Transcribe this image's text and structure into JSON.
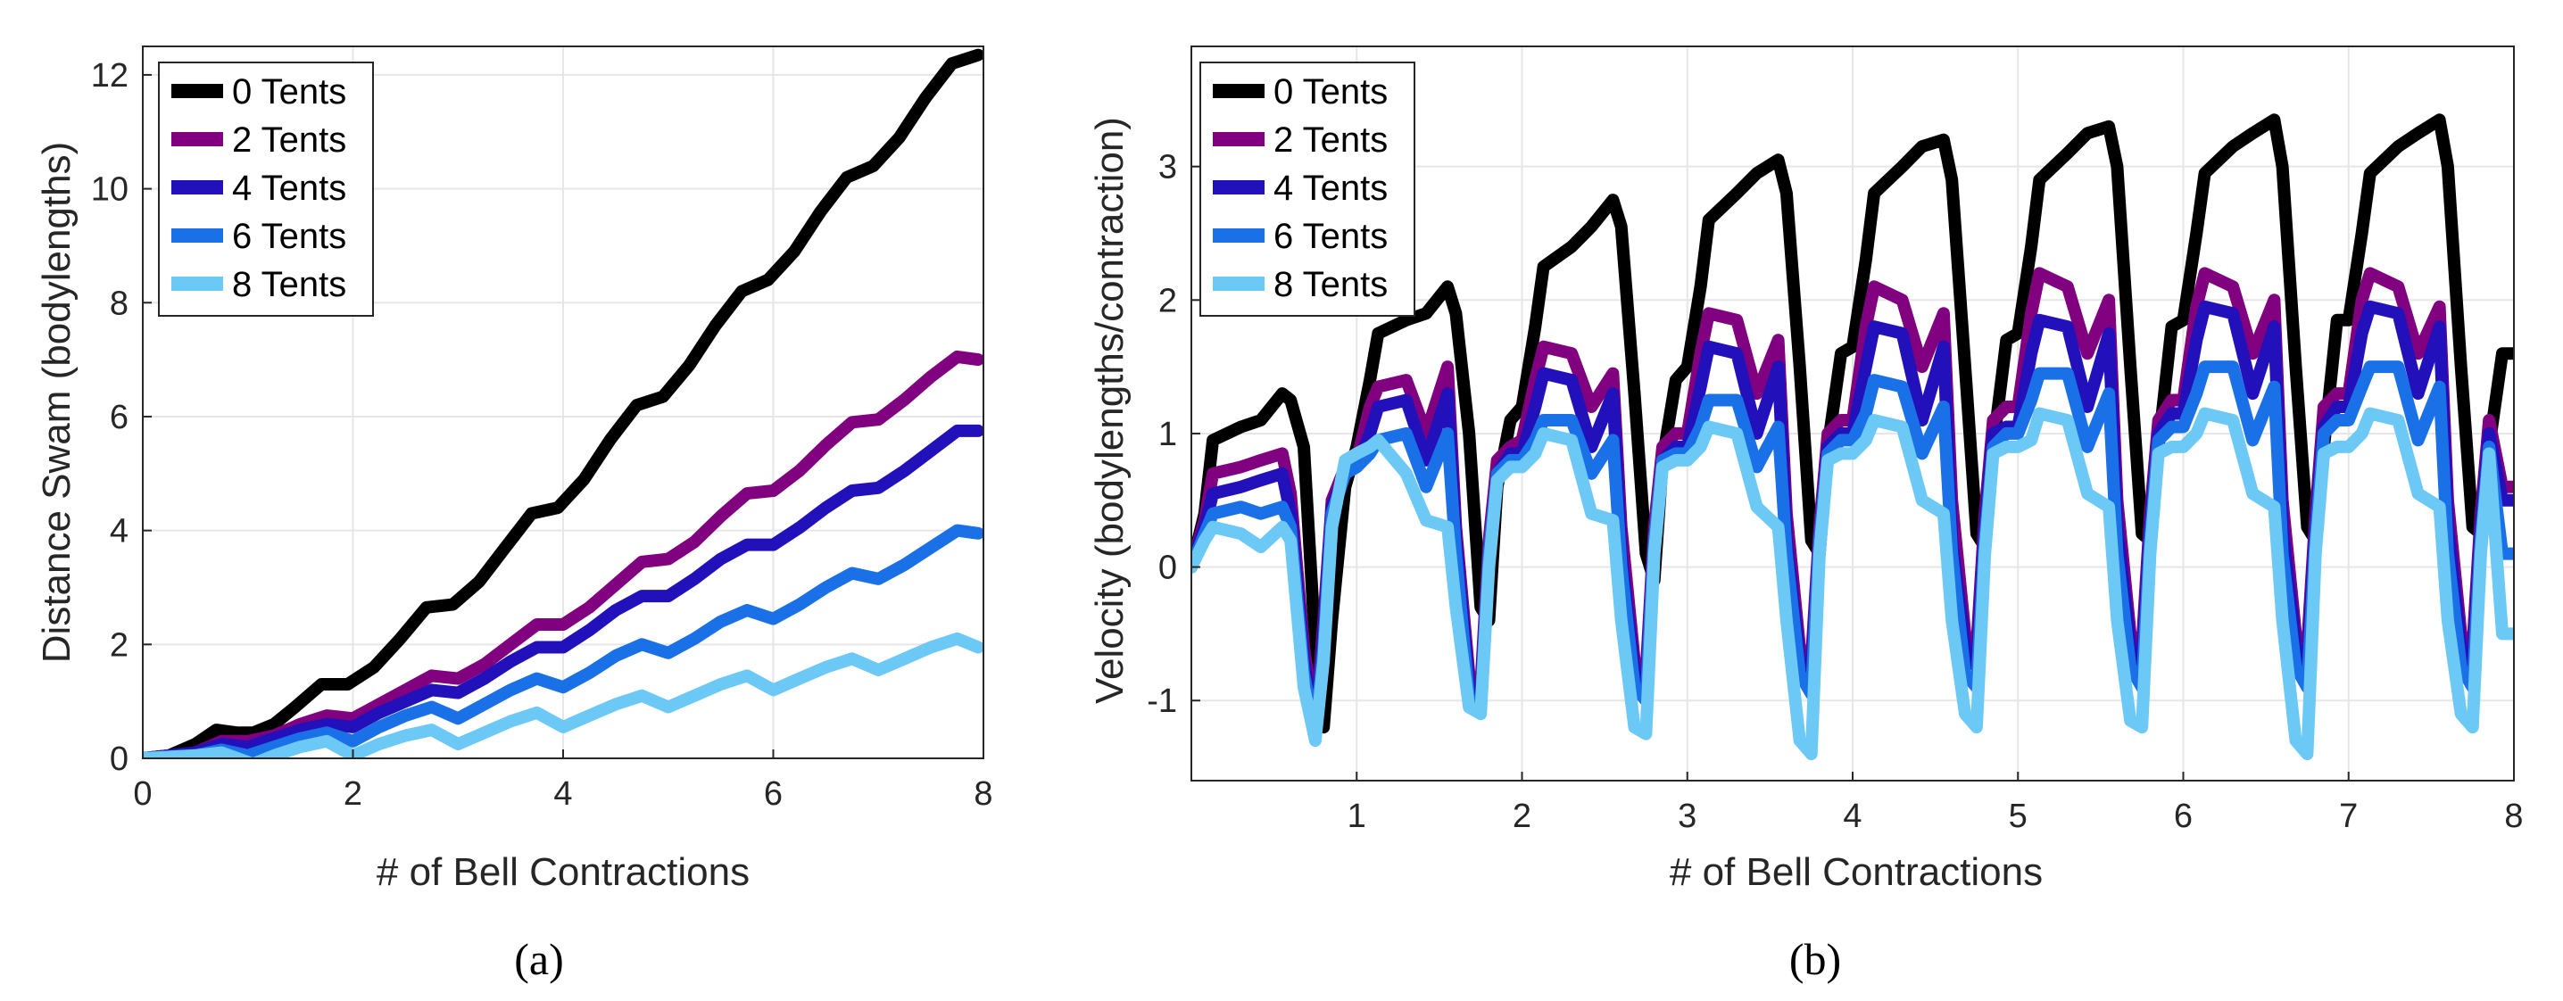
{
  "chart_data": [
    {
      "type": "line",
      "caption": "(a)",
      "xlabel": "# of Bell Contractions",
      "ylabel": "Distance Swam (bodylengths)",
      "xlim": [
        0,
        8
      ],
      "ylim": [
        0,
        12.5
      ],
      "xticks": [
        0,
        2,
        4,
        6,
        8
      ],
      "yticks": [
        0,
        2,
        4,
        6,
        8,
        10,
        12
      ],
      "grid": true,
      "legend": "top-left",
      "series": [
        {
          "name": "0 Tents",
          "color": "#000000",
          "x": [
            0,
            0.25,
            0.5,
            0.7,
            0.9,
            1.05,
            1.25,
            1.45,
            1.7,
            1.95,
            2.2,
            2.45,
            2.7,
            2.95,
            3.2,
            3.45,
            3.7,
            3.95,
            4.2,
            4.45,
            4.7,
            4.95,
            5.2,
            5.45,
            5.7,
            5.95,
            6.2,
            6.45,
            6.7,
            6.95,
            7.2,
            7.45,
            7.7,
            7.95
          ],
          "y": [
            0,
            0.05,
            0.25,
            0.5,
            0.45,
            0.45,
            0.6,
            0.9,
            1.3,
            1.3,
            1.6,
            2.1,
            2.65,
            2.7,
            3.1,
            3.7,
            4.3,
            4.4,
            4.9,
            5.6,
            6.2,
            6.35,
            6.9,
            7.6,
            8.2,
            8.4,
            8.9,
            9.6,
            10.2,
            10.4,
            10.9,
            11.6,
            12.2,
            12.35
          ]
        },
        {
          "name": "2 Tents",
          "color": "#800080",
          "x": [
            0,
            0.5,
            0.75,
            1,
            1.25,
            1.5,
            1.75,
            2,
            2.25,
            2.5,
            2.75,
            3,
            3.25,
            3.5,
            3.75,
            4,
            4.25,
            4.5,
            4.75,
            5,
            5.25,
            5.5,
            5.75,
            6,
            6.25,
            6.5,
            6.75,
            7,
            7.25,
            7.5,
            7.75,
            7.95
          ],
          "y": [
            0,
            0.1,
            0.3,
            0.3,
            0.4,
            0.6,
            0.75,
            0.7,
            0.95,
            1.2,
            1.45,
            1.4,
            1.65,
            2,
            2.35,
            2.35,
            2.65,
            3.05,
            3.45,
            3.5,
            3.8,
            4.25,
            4.65,
            4.7,
            5.05,
            5.5,
            5.9,
            5.95,
            6.3,
            6.7,
            7.05,
            7.0
          ]
        },
        {
          "name": "4 Tents",
          "color": "#2211BB",
          "x": [
            0,
            0.5,
            0.75,
            1,
            1.25,
            1.5,
            1.75,
            2,
            2.25,
            2.5,
            2.75,
            3,
            3.25,
            3.5,
            3.75,
            4,
            4.25,
            4.5,
            4.75,
            5,
            5.25,
            5.5,
            5.75,
            6,
            6.25,
            6.5,
            6.75,
            7,
            7.25,
            7.5,
            7.75,
            7.95
          ],
          "y": [
            0,
            0.1,
            0.25,
            0.2,
            0.35,
            0.5,
            0.6,
            0.55,
            0.8,
            1.0,
            1.2,
            1.15,
            1.4,
            1.7,
            1.95,
            1.95,
            2.25,
            2.6,
            2.85,
            2.85,
            3.15,
            3.5,
            3.75,
            3.75,
            4.05,
            4.4,
            4.7,
            4.75,
            5.05,
            5.4,
            5.75,
            5.75
          ]
        },
        {
          "name": "6 Tents",
          "color": "#1A70E6",
          "x": [
            0,
            0.5,
            0.75,
            1,
            1.25,
            1.5,
            1.75,
            2,
            2.25,
            2.5,
            2.75,
            3,
            3.25,
            3.5,
            3.75,
            4,
            4.25,
            4.5,
            4.75,
            5,
            5.25,
            5.5,
            5.75,
            6,
            6.25,
            6.5,
            6.75,
            7,
            7.25,
            7.5,
            7.75,
            7.95
          ],
          "y": [
            0,
            0.05,
            0.15,
            0.05,
            0.2,
            0.35,
            0.45,
            0.3,
            0.55,
            0.75,
            0.9,
            0.7,
            0.95,
            1.2,
            1.4,
            1.25,
            1.5,
            1.8,
            2.0,
            1.85,
            2.1,
            2.4,
            2.6,
            2.45,
            2.7,
            3.0,
            3.25,
            3.15,
            3.4,
            3.7,
            4.0,
            3.95
          ]
        },
        {
          "name": "8 Tents",
          "color": "#6CC8F5",
          "x": [
            0,
            0.5,
            0.75,
            0.9,
            1.05,
            1.25,
            1.5,
            1.75,
            2,
            2.25,
            2.5,
            2.75,
            3,
            3.25,
            3.5,
            3.75,
            4,
            4.25,
            4.5,
            4.75,
            5,
            5.25,
            5.5,
            5.75,
            6,
            6.25,
            6.5,
            6.75,
            7,
            7.25,
            7.5,
            7.75,
            7.95
          ],
          "y": [
            0,
            0.05,
            0.1,
            0.0,
            -0.1,
            0.05,
            0.2,
            0.3,
            0.05,
            0.25,
            0.4,
            0.5,
            0.25,
            0.45,
            0.65,
            0.8,
            0.55,
            0.75,
            0.95,
            1.1,
            0.9,
            1.1,
            1.3,
            1.45,
            1.2,
            1.4,
            1.6,
            1.75,
            1.55,
            1.75,
            1.95,
            2.1,
            1.95
          ]
        }
      ]
    },
    {
      "type": "line",
      "caption": "(b)",
      "xlabel": "# of Bell Contractions",
      "ylabel": "Velocity (bodylengths/contraction)",
      "xlim": [
        0,
        8
      ],
      "ylim": [
        -1.6,
        3.9
      ],
      "xticks": [
        1,
        2,
        3,
        4,
        5,
        6,
        7,
        8
      ],
      "yticks": [
        -1,
        0,
        1,
        2,
        3
      ],
      "grid": true,
      "legend": "top-left",
      "cycle_x": [
        0,
        0.08,
        0.13,
        0.3,
        0.42,
        0.55,
        0.6,
        0.68,
        0.75,
        0.8,
        0.85,
        0.93,
        1.0
      ],
      "series": [
        {
          "name": "0 Tents",
          "color": "#000000",
          "cycle_y": [
            [
              0,
              0.4,
              0.95,
              1.05,
              1.1,
              1.3,
              1.25,
              0.9,
              -0.6,
              -1.2,
              -0.4,
              0.6,
              0.9
            ],
            [
              0.9,
              1.4,
              1.75,
              1.85,
              1.9,
              2.1,
              1.9,
              1.0,
              -0.3,
              -0.4,
              0.6,
              1.1,
              1.2
            ],
            [
              1.2,
              1.8,
              2.25,
              2.4,
              2.55,
              2.75,
              2.55,
              1.3,
              0.1,
              -0.1,
              0.8,
              1.4,
              1.5
            ],
            [
              1.5,
              2.1,
              2.6,
              2.8,
              2.95,
              3.05,
              2.8,
              1.5,
              0.2,
              0.1,
              0.9,
              1.6,
              1.65
            ],
            [
              1.65,
              2.3,
              2.8,
              3.0,
              3.15,
              3.2,
              2.9,
              1.5,
              0.25,
              0.15,
              0.9,
              1.7,
              1.75
            ],
            [
              1.75,
              2.4,
              2.9,
              3.1,
              3.25,
              3.3,
              3.0,
              1.5,
              0.25,
              0.2,
              0.9,
              1.8,
              1.85
            ],
            [
              1.85,
              2.5,
              2.95,
              3.15,
              3.25,
              3.35,
              3.0,
              1.5,
              0.3,
              0.2,
              0.9,
              1.85,
              1.85
            ],
            [
              1.85,
              2.5,
              2.95,
              3.15,
              3.25,
              3.35,
              3.0,
              1.5,
              0.3,
              0.25,
              0.9,
              1.6,
              1.6
            ]
          ]
        },
        {
          "name": "2 Tents",
          "color": "#800080",
          "cycle_y": [
            [
              0,
              0.35,
              0.7,
              0.75,
              0.8,
              0.85,
              0.55,
              -0.6,
              -1.2,
              -0.4,
              0.5,
              0.75,
              0.8
            ],
            [
              0.8,
              1.2,
              1.35,
              1.4,
              1.0,
              1.5,
              0.3,
              -0.8,
              -0.9,
              0.2,
              0.8,
              0.9,
              0.95
            ],
            [
              0.95,
              1.4,
              1.65,
              1.6,
              1.2,
              1.45,
              0.3,
              -0.7,
              -0.8,
              0.3,
              0.9,
              1.0,
              1.0
            ],
            [
              1.0,
              1.6,
              1.9,
              1.85,
              1.3,
              1.7,
              0.4,
              -0.6,
              -0.7,
              0.3,
              1.0,
              1.1,
              1.1
            ],
            [
              1.1,
              1.8,
              2.1,
              2.0,
              1.5,
              1.9,
              0.5,
              -0.5,
              -0.6,
              0.4,
              1.1,
              1.2,
              1.2
            ],
            [
              1.2,
              1.9,
              2.2,
              2.1,
              1.6,
              2.0,
              0.5,
              -0.5,
              -0.6,
              0.4,
              1.1,
              1.25,
              1.25
            ],
            [
              1.25,
              1.95,
              2.2,
              2.1,
              1.6,
              2.0,
              0.5,
              -0.5,
              -0.6,
              0.4,
              1.2,
              1.3,
              1.3
            ],
            [
              1.3,
              2.0,
              2.2,
              2.1,
              1.6,
              1.95,
              0.5,
              -0.5,
              -0.6,
              0.4,
              1.1,
              0.6,
              0.6
            ]
          ]
        },
        {
          "name": "4 Tents",
          "color": "#2211BB",
          "cycle_y": [
            [
              0,
              0.3,
              0.55,
              0.6,
              0.65,
              0.7,
              0.4,
              -0.7,
              -1.25,
              -0.5,
              0.45,
              0.7,
              0.75
            ],
            [
              0.75,
              1.0,
              1.2,
              1.25,
              0.8,
              1.3,
              0.2,
              -0.9,
              -1.0,
              0.1,
              0.7,
              0.85,
              0.85
            ],
            [
              0.85,
              1.2,
              1.45,
              1.4,
              0.9,
              1.3,
              0.1,
              -0.8,
              -0.9,
              0.2,
              0.8,
              0.9,
              0.9
            ],
            [
              0.9,
              1.35,
              1.65,
              1.6,
              1.0,
              1.5,
              0.2,
              -0.7,
              -0.8,
              0.2,
              0.9,
              1.0,
              1.0
            ],
            [
              1.0,
              1.5,
              1.8,
              1.75,
              1.1,
              1.65,
              0.2,
              -0.6,
              -0.75,
              0.3,
              1.0,
              1.05,
              1.05
            ],
            [
              1.05,
              1.6,
              1.85,
              1.8,
              1.2,
              1.75,
              0.3,
              -0.6,
              -0.75,
              0.3,
              1.0,
              1.15,
              1.15
            ],
            [
              1.15,
              1.7,
              1.95,
              1.9,
              1.3,
              1.8,
              0.3,
              -0.6,
              -0.75,
              0.3,
              1.05,
              1.2,
              1.2
            ],
            [
              1.2,
              1.75,
              1.95,
              1.9,
              1.3,
              1.8,
              0.3,
              -0.6,
              -0.75,
              0.3,
              1.0,
              0.5,
              0.5
            ]
          ]
        },
        {
          "name": "6 Tents",
          "color": "#1A70E6",
          "cycle_y": [
            [
              0,
              0.25,
              0.4,
              0.45,
              0.4,
              0.45,
              0.3,
              -0.8,
              -1.25,
              -0.6,
              0.4,
              0.7,
              0.75
            ],
            [
              0.75,
              0.85,
              0.95,
              1.0,
              0.6,
              1.0,
              0.1,
              -1.0,
              -1.05,
              0.1,
              0.7,
              0.8,
              0.8
            ],
            [
              0.8,
              0.95,
              1.1,
              1.1,
              0.7,
              0.95,
              0.0,
              -0.9,
              -1.0,
              0.2,
              0.8,
              0.85,
              0.85
            ],
            [
              0.85,
              1.05,
              1.25,
              1.25,
              0.75,
              1.05,
              0.1,
              -0.8,
              -0.95,
              0.2,
              0.85,
              0.95,
              0.95
            ],
            [
              0.95,
              1.15,
              1.4,
              1.35,
              0.85,
              1.2,
              0.1,
              -0.8,
              -0.9,
              0.2,
              0.9,
              1.0,
              1.0
            ],
            [
              1.0,
              1.25,
              1.45,
              1.45,
              0.9,
              1.3,
              0.1,
              -0.75,
              -0.9,
              0.2,
              0.95,
              1.05,
              1.05
            ],
            [
              1.05,
              1.3,
              1.5,
              1.5,
              0.95,
              1.35,
              0.1,
              -0.75,
              -0.9,
              0.2,
              1.0,
              1.1,
              1.1
            ],
            [
              1.1,
              1.35,
              1.5,
              1.5,
              0.95,
              1.35,
              0.1,
              -0.75,
              -0.9,
              0.2,
              0.9,
              0.1,
              0.1
            ]
          ]
        },
        {
          "name": "8 Tents",
          "color": "#6CC8F5",
          "cycle_y": [
            [
              0,
              0.2,
              0.3,
              0.25,
              0.15,
              0.3,
              0.2,
              -0.9,
              -1.3,
              -0.7,
              0.3,
              0.8,
              0.85
            ],
            [
              0.85,
              0.9,
              0.95,
              0.7,
              0.35,
              0.3,
              -0.3,
              -1.05,
              -1.1,
              0.0,
              0.65,
              0.75,
              0.75
            ],
            [
              0.75,
              0.85,
              1.0,
              0.95,
              0.4,
              0.35,
              -0.4,
              -1.2,
              -1.25,
              0.1,
              0.75,
              0.8,
              0.8
            ],
            [
              0.8,
              0.9,
              1.05,
              1.0,
              0.45,
              0.3,
              -0.4,
              -1.3,
              -1.4,
              0.1,
              0.8,
              0.85,
              0.85
            ],
            [
              0.85,
              0.95,
              1.1,
              1.05,
              0.5,
              0.4,
              -0.4,
              -1.1,
              -1.2,
              0.1,
              0.85,
              0.9,
              0.9
            ],
            [
              0.9,
              0.95,
              1.15,
              1.1,
              0.55,
              0.45,
              -0.4,
              -1.15,
              -1.2,
              0.1,
              0.85,
              0.9,
              0.9
            ],
            [
              0.9,
              1.0,
              1.15,
              1.1,
              0.55,
              0.45,
              -0.4,
              -1.3,
              -1.4,
              0.1,
              0.85,
              0.9,
              0.9
            ],
            [
              0.9,
              1.0,
              1.15,
              1.1,
              0.55,
              0.45,
              -0.4,
              -1.1,
              -1.2,
              0.1,
              0.85,
              -0.5,
              -0.5
            ]
          ]
        }
      ]
    }
  ]
}
